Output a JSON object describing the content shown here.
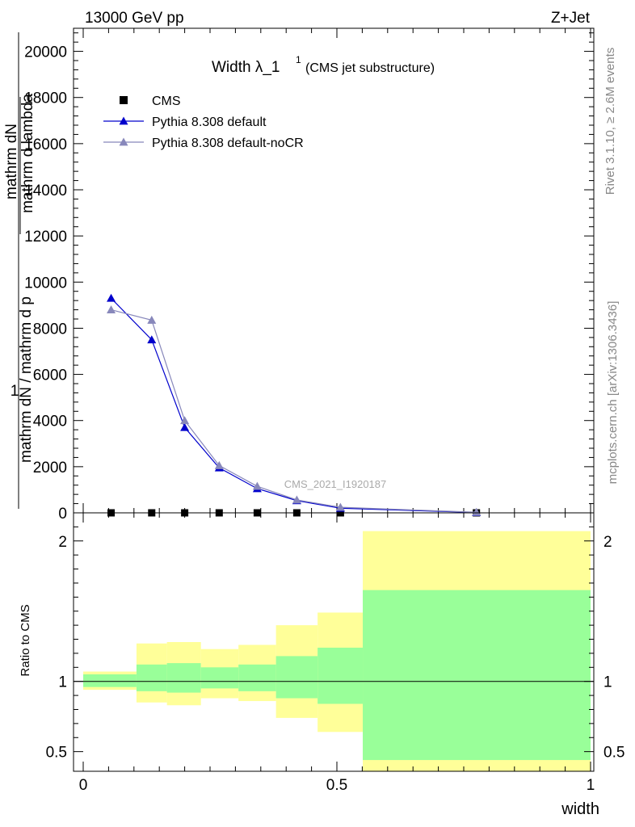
{
  "header": {
    "left": "13000 GeV pp",
    "right": "Z+Jet"
  },
  "side_labels": {
    "rivet": "Rivet 3.1.10, ≥ 2.6M events",
    "mcplots": "mcplots.cern.ch [arXiv:1306.3436]"
  },
  "chart_data": [
    {
      "type": "line",
      "title": "Width λ_1",
      "title_superscript": "1",
      "subtitle": "(CMS jet substructure)",
      "watermark": "CMS_2021_I1920187",
      "ylabel": "1 / mathrm dN / mathrm d p_mathrm T mathrm d^2N / mathrm d p_mathrm T mathrm d lambda",
      "ylabel_parts": [
        "1",
        "mathrm dN / mathrm d p",
        "mathrm d",
        "mathrm dN",
        "mathrm d p",
        "mathrm d lambda"
      ],
      "xlim": [
        0,
        1
      ],
      "ylim": [
        0,
        21000
      ],
      "yticks": [
        0,
        2000,
        4000,
        6000,
        8000,
        10000,
        12000,
        14000,
        16000,
        18000,
        20000
      ],
      "ytick_labels": [
        "0",
        "2000",
        "4000",
        "6000",
        "8000",
        "10000",
        "12000",
        "14000",
        "16000",
        "18000",
        "20000"
      ],
      "legend_position": "top-left",
      "series": [
        {
          "name": "CMS",
          "marker": "square",
          "color": "#000000",
          "x": [
            0.055,
            0.135,
            0.2,
            0.268,
            0.343,
            0.421,
            0.507,
            0.775
          ],
          "y": [
            0,
            0,
            0,
            0,
            0,
            0,
            0,
            0
          ]
        },
        {
          "name": "Pythia 8.308 default",
          "marker": "triangle",
          "color": "#0000cc",
          "x": [
            0.055,
            0.135,
            0.2,
            0.268,
            0.343,
            0.421,
            0.507,
            0.775
          ],
          "y": [
            9300,
            7500,
            3700,
            1950,
            1050,
            530,
            200,
            15
          ]
        },
        {
          "name": "Pythia 8.308 default-noCR",
          "marker": "triangle",
          "color": "#8888bb",
          "x": [
            0.055,
            0.135,
            0.2,
            0.268,
            0.343,
            0.421,
            0.507,
            0.775
          ],
          "y": [
            8800,
            8350,
            4000,
            2050,
            1150,
            560,
            240,
            25
          ]
        }
      ]
    },
    {
      "type": "area",
      "ylabel": "Ratio to CMS",
      "xlabel": "width",
      "xlim": [
        0,
        1
      ],
      "ylim": [
        0.36,
        2.2
      ],
      "xticks": [
        0,
        0.5,
        1
      ],
      "xtick_labels": [
        "0",
        "0.5",
        "1"
      ],
      "yticks": [
        0.5,
        1,
        2
      ],
      "ytick_labels": [
        "0.5",
        "1",
        "2"
      ],
      "reference_line": 1,
      "bins": [
        {
          "lo": 0.0,
          "hi": 0.105,
          "green": [
            0.96,
            1.05
          ],
          "yellow": [
            0.94,
            1.07
          ]
        },
        {
          "lo": 0.105,
          "hi": 0.165,
          "green": [
            0.93,
            1.12
          ],
          "yellow": [
            0.85,
            1.27
          ]
        },
        {
          "lo": 0.165,
          "hi": 0.232,
          "green": [
            0.92,
            1.13
          ],
          "yellow": [
            0.83,
            1.28
          ]
        },
        {
          "lo": 0.232,
          "hi": 0.306,
          "green": [
            0.95,
            1.1
          ],
          "yellow": [
            0.88,
            1.23
          ]
        },
        {
          "lo": 0.306,
          "hi": 0.38,
          "green": [
            0.93,
            1.12
          ],
          "yellow": [
            0.86,
            1.26
          ]
        },
        {
          "lo": 0.38,
          "hi": 0.462,
          "green": [
            0.88,
            1.18
          ],
          "yellow": [
            0.74,
            1.4
          ]
        },
        {
          "lo": 0.462,
          "hi": 0.551,
          "green": [
            0.84,
            1.24
          ],
          "yellow": [
            0.64,
            1.49
          ]
        },
        {
          "lo": 0.551,
          "hi": 1.0,
          "green": [
            0.44,
            1.65
          ],
          "yellow": [
            0.36,
            2.07
          ]
        }
      ],
      "band_colors": {
        "green": "#99ff99",
        "yellow": "#ffff99"
      }
    }
  ]
}
